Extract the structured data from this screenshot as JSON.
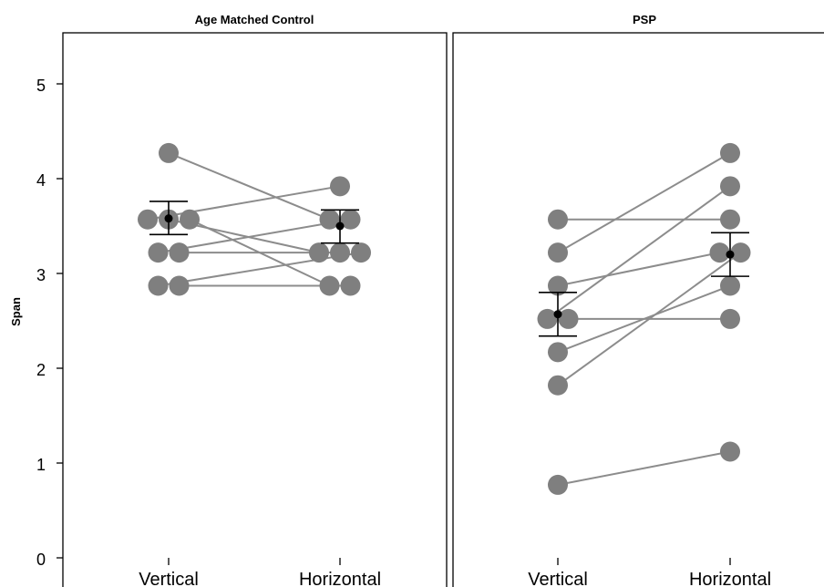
{
  "chart_data": {
    "type": "scatter",
    "ylabel": "Span",
    "ylim": [
      0,
      5.5
    ],
    "yticks": [
      "0",
      "1",
      "2",
      "3",
      "4",
      "5"
    ],
    "categories": [
      "Vertical",
      "Horizontal"
    ],
    "point_color": "#7f7f7f",
    "line_color": "#8c8c8c",
    "mean_color": "#000000",
    "panels": [
      {
        "title": "Age Matched Control",
        "pairs": [
          {
            "vertical": 4.27,
            "horizontal": 3.57
          },
          {
            "vertical": 3.57,
            "horizontal": 3.92
          },
          {
            "vertical": 3.57,
            "horizontal": 3.22
          },
          {
            "vertical": 3.57,
            "horizontal": 2.87
          },
          {
            "vertical": 3.22,
            "horizontal": 3.57
          },
          {
            "vertical": 3.22,
            "horizontal": 3.22
          },
          {
            "vertical": 2.87,
            "horizontal": 3.22
          },
          {
            "vertical": 2.87,
            "horizontal": 2.87
          }
        ],
        "mean": {
          "vertical": 3.58,
          "horizontal": 3.5
        },
        "error": {
          "vertical": [
            3.41,
            3.76
          ],
          "horizontal": [
            3.32,
            3.67
          ]
        }
      },
      {
        "title": "PSP",
        "pairs": [
          {
            "vertical": 3.57,
            "horizontal": 3.57
          },
          {
            "vertical": 3.22,
            "horizontal": 4.27
          },
          {
            "vertical": 2.87,
            "horizontal": 3.22
          },
          {
            "vertical": 2.52,
            "horizontal": 3.92
          },
          {
            "vertical": 2.52,
            "horizontal": 2.52
          },
          {
            "vertical": 2.17,
            "horizontal": 2.87
          },
          {
            "vertical": 1.82,
            "horizontal": 3.22
          },
          {
            "vertical": 0.77,
            "horizontal": 1.12
          }
        ],
        "mean": {
          "vertical": 2.57,
          "horizontal": 3.2
        },
        "error": {
          "vertical": [
            2.34,
            2.8
          ],
          "horizontal": [
            2.97,
            3.43
          ]
        }
      }
    ]
  }
}
